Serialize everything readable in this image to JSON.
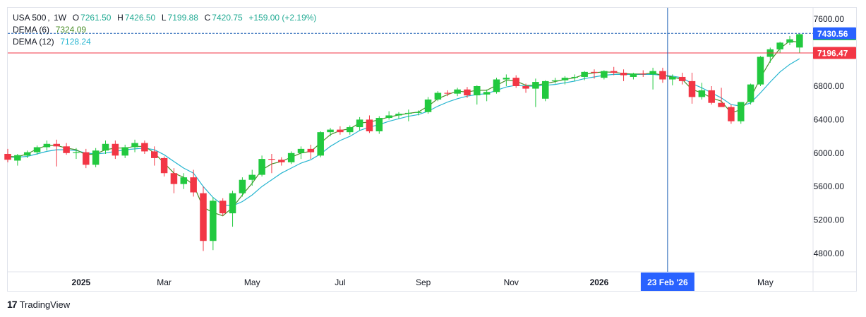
{
  "legend": {
    "symbol": "USA 500",
    "interval": "1W",
    "open_label": "O",
    "open": "7261.50",
    "high_label": "H",
    "high": "7426.50",
    "low_label": "L",
    "low": "7199.88",
    "close_label": "C",
    "close": "7420.75",
    "change": "+159.00 (+2.19%)",
    "dema6_label": "DEMA (6)",
    "dema6_value": "7324.09",
    "dema12_label": "DEMA (12)",
    "dema12_value": "7128.24"
  },
  "price_labels": {
    "crosshair": "7430.56",
    "last": "7420.75",
    "red_line": "7196.47"
  },
  "crosshair_time_label": "23 Feb '26",
  "footer": {
    "brand": "TradingView"
  },
  "colors": {
    "up": "#22c93f",
    "down": "#f23645",
    "dema6": "#4b8f2a",
    "dema12": "#26b5d0",
    "crosshair_line": "#1a5fb4",
    "red_line": "#f23645",
    "label_blue": "#2962ff",
    "label_green": "#22c93f",
    "label_red": "#f23645"
  },
  "chart_data": {
    "type": "candlestick",
    "y_ticks": [
      "7600.00",
      "7200.00",
      "6800.00",
      "6400.00",
      "6000.00",
      "5600.00",
      "5200.00",
      "4800.00"
    ],
    "x_labels": [
      {
        "label": "2025",
        "bold": true,
        "index": 7.5
      },
      {
        "label": "Mar",
        "bold": false,
        "index": 16
      },
      {
        "label": "May",
        "bold": false,
        "index": 25
      },
      {
        "label": "Jul",
        "bold": false,
        "index": 34
      },
      {
        "label": "Sep",
        "bold": false,
        "index": 42.5
      },
      {
        "label": "Nov",
        "bold": false,
        "index": 51.5
      },
      {
        "label": "2026",
        "bold": true,
        "index": 60.5
      },
      {
        "label": "May",
        "bold": false,
        "index": 77.5
      }
    ],
    "crosshair_index": 67.5,
    "crosshair_price": 7430.56,
    "red_line_price": 7196.47,
    "candles": [
      [
        5990,
        6050,
        5890,
        5920
      ],
      [
        5910,
        5990,
        5850,
        5975
      ],
      [
        5970,
        6030,
        5940,
        6010
      ],
      [
        6010,
        6090,
        5980,
        6070
      ],
      [
        6070,
        6150,
        6030,
        6110
      ],
      [
        6110,
        6160,
        5840,
        6080
      ],
      [
        6080,
        6120,
        5980,
        6000
      ],
      [
        6000,
        6060,
        5930,
        6010
      ],
      [
        6010,
        6050,
        5820,
        5860
      ],
      [
        5860,
        6060,
        5830,
        6030
      ],
      [
        6030,
        6150,
        5990,
        6110
      ],
      [
        6110,
        6150,
        5930,
        5970
      ],
      [
        5970,
        6100,
        5940,
        6070
      ],
      [
        6070,
        6160,
        6010,
        6120
      ],
      [
        6120,
        6150,
        5990,
        6020
      ],
      [
        6020,
        6080,
        5850,
        5940
      ],
      [
        5940,
        5960,
        5720,
        5760
      ],
      [
        5760,
        5820,
        5520,
        5630
      ],
      [
        5630,
        5760,
        5570,
        5710
      ],
      [
        5710,
        5800,
        5480,
        5530
      ],
      [
        5520,
        5600,
        4830,
        4950
      ],
      [
        4950,
        5470,
        4840,
        5430
      ],
      [
        5430,
        5460,
        5250,
        5280
      ],
      [
        5280,
        5550,
        5120,
        5520
      ],
      [
        5520,
        5710,
        5480,
        5680
      ],
      [
        5680,
        5800,
        5610,
        5740
      ],
      [
        5740,
        5970,
        5720,
        5930
      ],
      [
        5930,
        5990,
        5760,
        5920
      ],
      [
        5920,
        5950,
        5850,
        5890
      ],
      [
        5890,
        6020,
        5870,
        6000
      ],
      [
        6000,
        6080,
        5930,
        6050
      ],
      [
        6050,
        6100,
        5930,
        6010
      ],
      [
        5970,
        6260,
        5950,
        6250
      ],
      [
        6250,
        6300,
        6200,
        6280
      ],
      [
        6280,
        6320,
        6220,
        6250
      ],
      [
        6250,
        6330,
        6220,
        6310
      ],
      [
        6310,
        6430,
        6270,
        6400
      ],
      [
        6400,
        6450,
        6240,
        6260
      ],
      [
        6260,
        6440,
        6230,
        6420
      ],
      [
        6420,
        6500,
        6400,
        6450
      ],
      [
        6450,
        6490,
        6410,
        6470
      ],
      [
        6470,
        6520,
        6380,
        6480
      ],
      [
        6480,
        6510,
        6450,
        6490
      ],
      [
        6490,
        6670,
        6470,
        6640
      ],
      [
        6640,
        6740,
        6620,
        6720
      ],
      [
        6720,
        6750,
        6680,
        6710
      ],
      [
        6710,
        6780,
        6680,
        6760
      ],
      [
        6760,
        6790,
        6660,
        6690
      ],
      [
        6690,
        6810,
        6580,
        6800
      ],
      [
        6700,
        6760,
        6620,
        6730
      ],
      [
        6730,
        6900,
        6710,
        6880
      ],
      [
        6880,
        6940,
        6800,
        6900
      ],
      [
        6900,
        6930,
        6780,
        6800
      ],
      [
        6800,
        6830,
        6720,
        6770
      ],
      [
        6770,
        6890,
        6550,
        6850
      ],
      [
        6650,
        6870,
        6620,
        6860
      ],
      [
        6860,
        6900,
        6830,
        6870
      ],
      [
        6870,
        6920,
        6820,
        6900
      ],
      [
        6900,
        6940,
        6860,
        6910
      ],
      [
        6910,
        6980,
        6870,
        6970
      ],
      [
        6970,
        7000,
        6890,
        6960
      ],
      [
        6900,
        6990,
        6880,
        6980
      ],
      [
        6980,
        7030,
        6930,
        6960
      ],
      [
        6960,
        7000,
        6860,
        6930
      ],
      [
        6910,
        6960,
        6880,
        6950
      ],
      [
        6950,
        6990,
        6910,
        6940
      ],
      [
        6940,
        7020,
        6760,
        6980
      ],
      [
        6980,
        7020,
        6840,
        6880
      ],
      [
        6880,
        6940,
        6810,
        6910
      ],
      [
        6910,
        6960,
        6820,
        6860
      ],
      [
        6860,
        6960,
        6590,
        6670
      ],
      [
        6670,
        6840,
        6640,
        6750
      ],
      [
        6750,
        6800,
        6580,
        6600
      ],
      [
        6600,
        6780,
        6560,
        6550
      ],
      [
        6550,
        6580,
        6350,
        6380
      ],
      [
        6380,
        6600,
        6350,
        6610
      ],
      [
        6610,
        6830,
        6580,
        6820
      ],
      [
        6820,
        7160,
        6800,
        7150
      ],
      [
        7150,
        7260,
        7080,
        7240
      ],
      [
        7240,
        7330,
        7200,
        7320
      ],
      [
        7320,
        7400,
        7290,
        7360
      ],
      [
        7261.5,
        7426.5,
        7199.88,
        7420.75
      ]
    ],
    "dema6": [
      5960,
      5955,
      5990,
      6050,
      6090,
      6090,
      6060,
      6040,
      5980,
      5990,
      6040,
      6060,
      6060,
      6080,
      6080,
      6000,
      5880,
      5760,
      5710,
      5620,
      5350,
      5290,
      5250,
      5350,
      5500,
      5640,
      5800,
      5870,
      5900,
      5950,
      6000,
      6020,
      6120,
      6220,
      6270,
      6290,
      6360,
      6370,
      6400,
      6430,
      6455,
      6475,
      6490,
      6560,
      6650,
      6700,
      6740,
      6730,
      6750,
      6750,
      6810,
      6870,
      6860,
      6810,
      6810,
      6830,
      6855,
      6880,
      6900,
      6940,
      6960,
      6970,
      6965,
      6950,
      6945,
      6945,
      6955,
      6930,
      6910,
      6880,
      6760,
      6720,
      6660,
      6620,
      6480,
      6520,
      6660,
      6900,
      7100,
      7250,
      7340,
      7324
    ],
    "dema12": [
      5950,
      5950,
      5960,
      5990,
      6020,
      6040,
      6040,
      6030,
      6000,
      5990,
      6000,
      6020,
      6040,
      6050,
      6060,
      6040,
      5980,
      5900,
      5820,
      5760,
      5600,
      5470,
      5380,
      5370,
      5420,
      5500,
      5600,
      5680,
      5760,
      5820,
      5880,
      5920,
      5990,
      6080,
      6150,
      6200,
      6270,
      6310,
      6340,
      6380,
      6410,
      6440,
      6460,
      6500,
      6560,
      6610,
      6650,
      6680,
      6700,
      6710,
      6750,
      6790,
      6810,
      6800,
      6800,
      6810,
      6820,
      6840,
      6860,
      6890,
      6910,
      6930,
      6940,
      6940,
      6940,
      6940,
      6940,
      6930,
      6920,
      6900,
      6830,
      6780,
      6720,
      6660,
      6580,
      6560,
      6600,
      6720,
      6850,
      6970,
      7060,
      7128
    ]
  }
}
